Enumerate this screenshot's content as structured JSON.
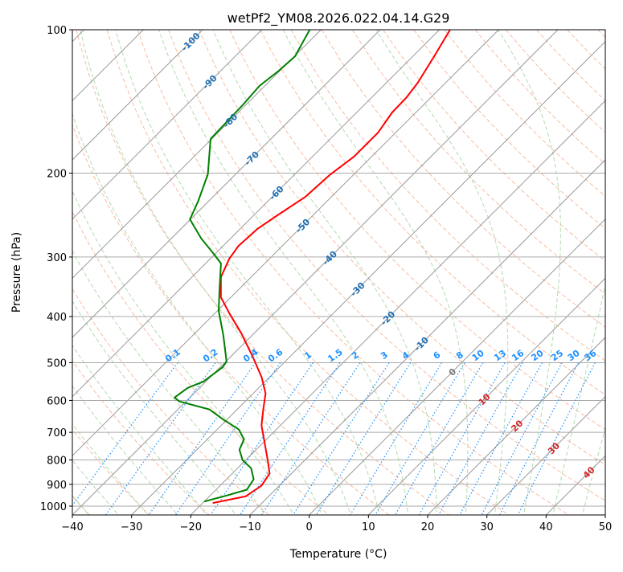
{
  "chart_data": {
    "type": "line",
    "subtype": "skew-t log-p",
    "title": "wetPf2_YM08.2026.022.04.14.G29",
    "xlabel": "Temperature (°C)",
    "ylabel": "Pressure (hPa)",
    "xlim": [
      -40,
      50
    ],
    "ylim": [
      1050,
      100
    ],
    "yscale": "log",
    "skew_deg": 45,
    "grid": true,
    "x_ticks": [
      "−40",
      "−30",
      "−20",
      "−10",
      "0",
      "10",
      "20",
      "30",
      "40",
      "50"
    ],
    "x_tick_values": [
      -40,
      -30,
      -20,
      -10,
      0,
      10,
      20,
      30,
      40,
      50
    ],
    "y_ticks": [
      "100",
      "200",
      "300",
      "400",
      "500",
      "600",
      "700",
      "800",
      "900",
      "1000"
    ],
    "y_tick_values": [
      100,
      200,
      300,
      400,
      500,
      600,
      700,
      800,
      900,
      1000
    ],
    "isotherm_labels": {
      "values": [
        -100,
        -90,
        -80,
        -70,
        -60,
        -50,
        -40,
        -30,
        -20,
        -10,
        0,
        10,
        20,
        30,
        40
      ],
      "text": [
        "-100",
        "-90",
        "-80",
        "-70",
        "-60",
        "-50",
        "-40",
        "-30",
        "-20",
        "-10",
        "0",
        "10",
        "20",
        "30",
        "40"
      ],
      "colors": {
        "negative": "#1f6fb4",
        "zero": "#777777",
        "positive": "#d62728"
      }
    },
    "mixing_ratio_labels": [
      "0.1",
      "0.2",
      "0.4",
      "0.6",
      "1",
      "1.5",
      "2",
      "3",
      "4",
      "6",
      "8",
      "10",
      "13",
      "16",
      "20",
      "25",
      "30",
      "36"
    ],
    "mixing_ratio_values": [
      0.1,
      0.2,
      0.4,
      0.6,
      1,
      1.5,
      2,
      3,
      4,
      6,
      8,
      10,
      13,
      16,
      20,
      25,
      30,
      36
    ],
    "colors": {
      "temperature": "#ff0000",
      "dewpoint": "#008000",
      "dry_adiabat": "#f4a582",
      "moist_adiabat": "#9fd19a",
      "mixing_ratio": "#1e90ff",
      "isotherm": "#888888",
      "mixing_label": "#1e90ff"
    },
    "series": [
      {
        "name": "Temperature",
        "units": "°C",
        "p_T": [
          [
            100,
            -58.2
          ],
          [
            113.7,
            -56.4
          ],
          [
            129.2,
            -54.7
          ],
          [
            139.1,
            -54.1
          ],
          [
            149.2,
            -54.0
          ],
          [
            164.3,
            -53.0
          ],
          [
            184.6,
            -53.0
          ],
          [
            202,
            -54.0
          ],
          [
            224.2,
            -54.4
          ],
          [
            245.2,
            -56.0
          ],
          [
            262,
            -57.1
          ],
          [
            284.3,
            -57.4
          ],
          [
            302.3,
            -56.8
          ],
          [
            330.6,
            -55.1
          ],
          [
            364.4,
            -51.7
          ],
          [
            393.5,
            -47.6
          ],
          [
            433.4,
            -42.2
          ],
          [
            487.4,
            -36.1
          ],
          [
            536.5,
            -31.3
          ],
          [
            580,
            -27.9
          ],
          [
            626.6,
            -25.6
          ],
          [
            676.9,
            -23.2
          ],
          [
            731.3,
            -20.0
          ],
          [
            806,
            -16.0
          ],
          [
            854,
            -13.7
          ],
          [
            906,
            -13.0
          ],
          [
            954,
            -13.9
          ],
          [
            985,
            -18.3
          ]
        ]
      },
      {
        "name": "Dewpoint",
        "units": "°C",
        "p_T": [
          [
            100,
            -81.9
          ],
          [
            113.7,
            -79.9
          ],
          [
            121.9,
            -80.2
          ],
          [
            131.2,
            -80.9
          ],
          [
            143.5,
            -80.5
          ],
          [
            159.4,
            -80.3
          ],
          [
            169.5,
            -80.2
          ],
          [
            183.2,
            -77.7
          ],
          [
            201,
            -74.7
          ],
          [
            228.7,
            -71.8
          ],
          [
            250,
            -70.1
          ],
          [
            274,
            -65.0
          ],
          [
            296.6,
            -60.0
          ],
          [
            309.5,
            -57.4
          ],
          [
            350.4,
            -53.3
          ],
          [
            389,
            -49.8
          ],
          [
            437.5,
            -44.9
          ],
          [
            497,
            -39.9
          ],
          [
            510.6,
            -39.6
          ],
          [
            547.5,
            -40.4
          ],
          [
            564.6,
            -42.0
          ],
          [
            591.5,
            -42.6
          ],
          [
            603,
            -41.1
          ],
          [
            626.6,
            -34.7
          ],
          [
            656.6,
            -30.8
          ],
          [
            690.8,
            -26.3
          ],
          [
            724,
            -23.8
          ],
          [
            761.5,
            -22.8
          ],
          [
            801,
            -20.5
          ],
          [
            832.7,
            -17.7
          ],
          [
            878.5,
            -15.4
          ],
          [
            923.5,
            -14.8
          ],
          [
            948.5,
            -17.1
          ],
          [
            978.3,
            -20.0
          ]
        ]
      }
    ]
  }
}
